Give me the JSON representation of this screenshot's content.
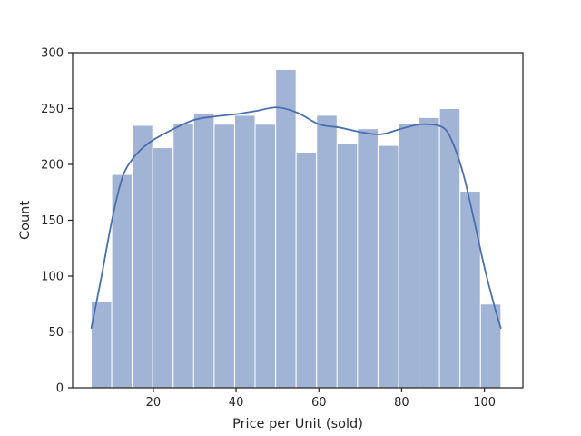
{
  "chart_data": {
    "type": "bar",
    "title": "",
    "xlabel": "Price per Unit (sold)",
    "ylabel": "Count",
    "xlim": [
      0.5,
      109.3
    ],
    "ylim": [
      0,
      300
    ],
    "xticks": [
      20,
      40,
      60,
      80,
      100
    ],
    "yticks": [
      0,
      50,
      100,
      150,
      200,
      250,
      300
    ],
    "bin_edges": [
      5,
      9.95,
      14.9,
      19.85,
      24.8,
      29.75,
      34.7,
      39.65,
      44.6,
      49.55,
      54.5,
      59.45,
      64.4,
      69.35,
      74.3,
      79.25,
      84.2,
      89.15,
      94.1,
      99.05,
      104
    ],
    "values": [
      77,
      191,
      235,
      215,
      237,
      246,
      236,
      244,
      236,
      285,
      211,
      244,
      219,
      232,
      217,
      237,
      242,
      250,
      176,
      75
    ],
    "kde": {
      "x": [
        5,
        7.5,
        10,
        12.5,
        15,
        17.5,
        20,
        25,
        30,
        35,
        40,
        45,
        50,
        55,
        60,
        65,
        70,
        75,
        80,
        85,
        90,
        92.5,
        95,
        97.5,
        100,
        102.5,
        104
      ],
      "y": [
        53,
        100,
        150,
        188,
        205,
        215,
        222,
        232,
        240,
        243,
        245,
        248,
        251,
        246,
        236,
        233,
        229,
        227,
        232,
        236,
        233,
        218,
        190,
        150,
        108,
        72,
        53
      ]
    },
    "grid": false,
    "legend": "none",
    "colors": {
      "bar_fill": "#a2b4d6",
      "bar_edge": "#ffffff",
      "kde_line": "#4a6fae",
      "axis": "#262626"
    }
  }
}
